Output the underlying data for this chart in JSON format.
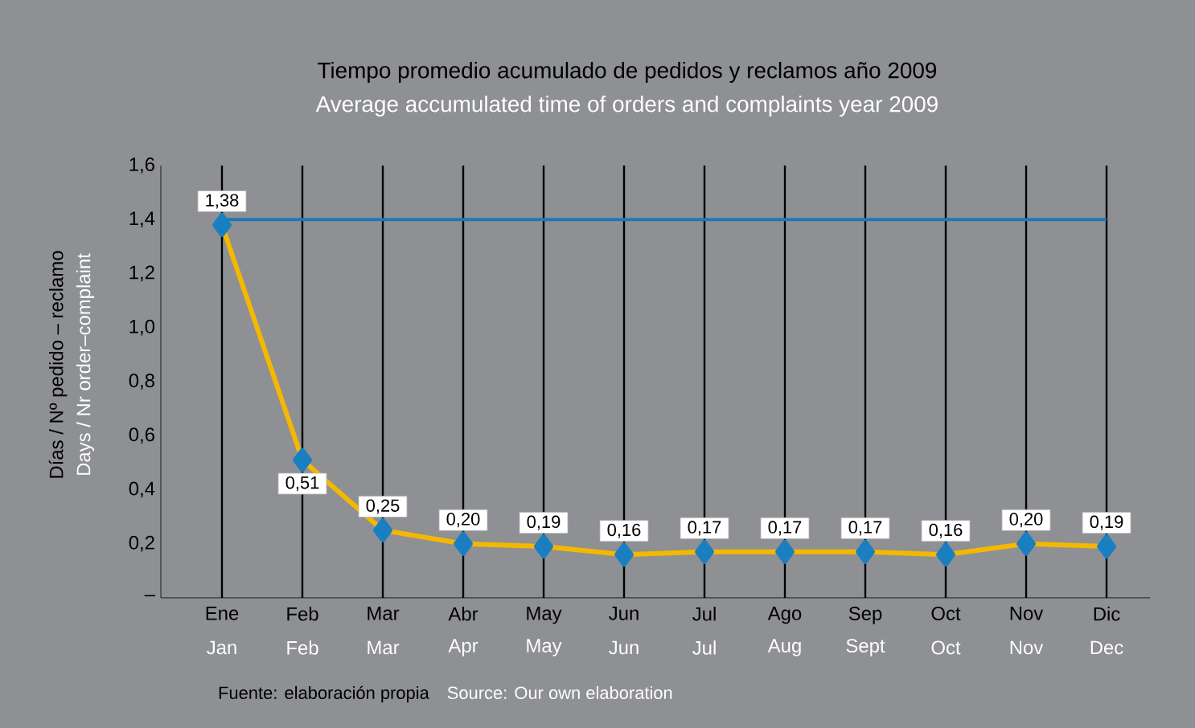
{
  "chart_data": {
    "type": "line",
    "title": "Tiempo promedio acumulado de pedidos y reclamos año 2009",
    "subtitle": "Average accumulated time of orders and complaints year 2009",
    "ylabel": "Días / Nº pedido – reclamo",
    "y2label": "Days / Nr order–complaint",
    "categories": [
      "Ene",
      "Feb",
      "Mar",
      "Abr",
      "May",
      "Jun",
      "Jul",
      "Ago",
      "Sep",
      "Oct",
      "Nov",
      "Dic"
    ],
    "series": [
      {
        "color": "#f5b800",
        "values": [
          1.38,
          0.51,
          0.25,
          0.2,
          0.19,
          0.16,
          0.17,
          0.17,
          0.17,
          0.16,
          0.2,
          0.19
        ],
        "value_labels": [
          "1,38",
          "0,51",
          "0,25",
          "0,20",
          "0,19",
          "0,16",
          "0,17",
          "0,17",
          "0,17",
          "0,16",
          "0,20",
          "0,19"
        ]
      }
    ],
    "ylim": [
      0,
      1.6
    ],
    "yticks": [
      {
        "value": 0,
        "label": "–"
      },
      {
        "value": 0.2,
        "label": "0,2"
      },
      {
        "value": 0.4,
        "label": "0,4"
      },
      {
        "value": 0.6,
        "label": "0,6"
      },
      {
        "value": 0.8,
        "label": "0,8"
      },
      {
        "value": 1.0,
        "label": "1,0"
      },
      {
        "value": 1.2,
        "label": "1,2"
      },
      {
        "value": 1.4,
        "label": "1,4"
      },
      {
        "value": 1.6,
        "label": "1,6"
      }
    ],
    "ref_lines": [
      {
        "axis": "y",
        "value": 1.4,
        "color": "#1f78b4"
      }
    ],
    "grid": "x",
    "marker": "diamond",
    "line_style": "solid",
    "annotations": [
      "Jan",
      "Feb",
      "Mar",
      "Apr",
      "May",
      "Jun",
      "Jul",
      "Aug",
      "Sept",
      "Oct",
      "Nov",
      "Dec",
      "Fuente: elaboración propia",
      "Source: Our own elaboration"
    ]
  }
}
